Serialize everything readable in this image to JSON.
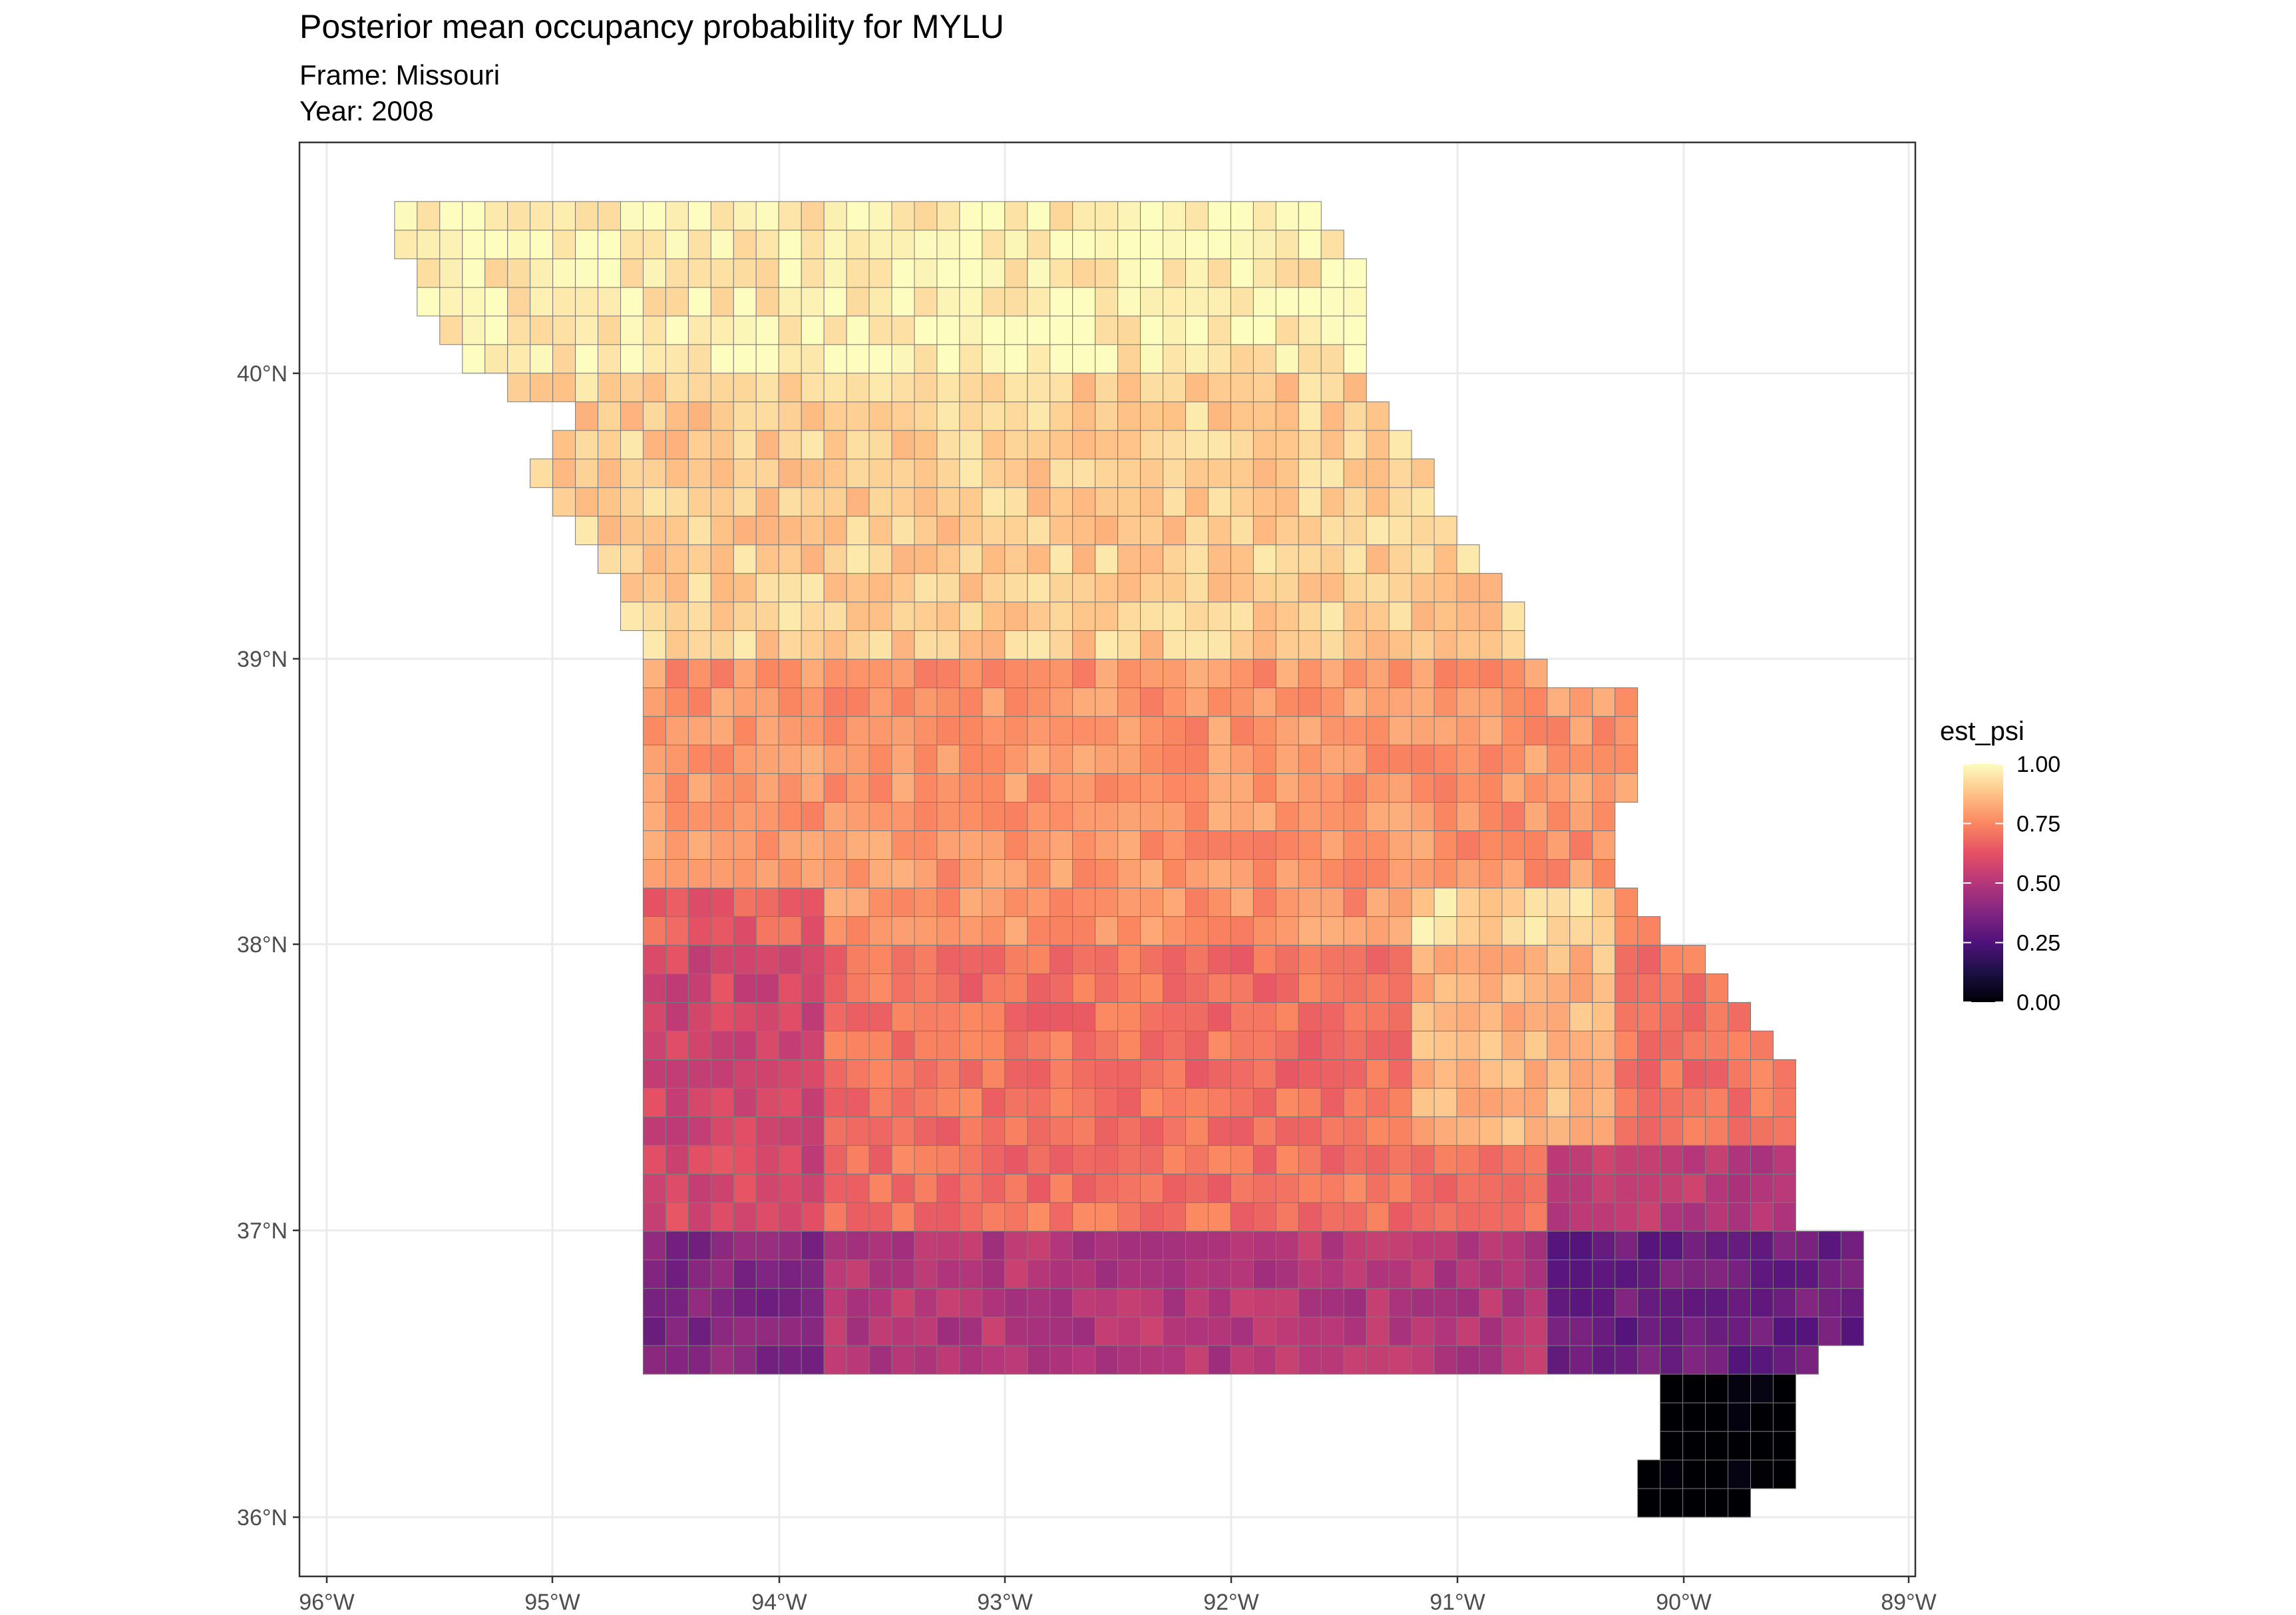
{
  "title": "Posterior mean occupancy probability for MYLU",
  "subtitle_frame": "Frame: Missouri",
  "subtitle_year": "Year: 2008",
  "chart_data": {
    "type": "heatmap",
    "variable": "est_psi",
    "x_ticks": [
      -96,
      -95,
      -94,
      -93,
      -92,
      -91,
      -90,
      -89
    ],
    "x_tick_labels": [
      "96°W",
      "95°W",
      "94°W",
      "93°W",
      "92°W",
      "91°W",
      "90°W",
      "89°W"
    ],
    "y_ticks": [
      36,
      37,
      38,
      39,
      40
    ],
    "y_tick_labels": [
      "36°N",
      "37°N",
      "38°N",
      "39°N",
      "40°N"
    ],
    "xlim": [
      -96.1,
      -88.9
    ],
    "ylim": [
      35.85,
      40.8
    ],
    "grid": true,
    "legend": {
      "title": "est_psi",
      "position": "right",
      "breaks": [
        1.0,
        0.75,
        0.5,
        0.25,
        0.0
      ],
      "labels": [
        "1.00",
        "0.75",
        "0.50",
        "0.25",
        "0.00"
      ],
      "colormap": "magma",
      "range": [
        0,
        1
      ]
    },
    "region": "Missouri grid cells",
    "cell_size_deg": 0.1,
    "approx_values_by_latitude_band": [
      {
        "lat_range": [
          40.0,
          40.6
        ],
        "est_psi": 0.97
      },
      {
        "lat_range": [
          39.0,
          40.0
        ],
        "est_psi": 0.9
      },
      {
        "lat_range": [
          38.0,
          39.0
        ],
        "est_psi": 0.78
      },
      {
        "lat_range": [
          37.0,
          38.0
        ],
        "est_psi": 0.7
      },
      {
        "lat_range": [
          36.5,
          37.0
        ],
        "est_psi": 0.5
      },
      {
        "lat_range": [
          36.0,
          36.5
        ],
        "est_psi": 0.15
      }
    ]
  },
  "colors": {
    "panel_border": "#333333",
    "grid": "#ebebeb",
    "cell_stroke": "#7a7a7a",
    "magma_stops": [
      "#000004",
      "#1c1044",
      "#4f127b",
      "#812581",
      "#b5367a",
      "#e55064",
      "#fb8761",
      "#fec287",
      "#fcfdbf"
    ]
  }
}
